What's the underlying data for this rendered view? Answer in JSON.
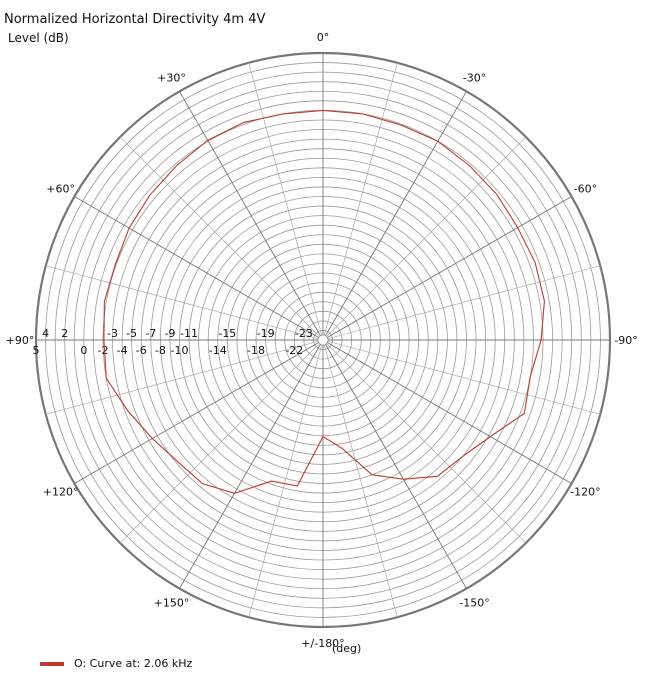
{
  "chart_data": {
    "type": "polar-line",
    "title": "Normalized Horizontal Directivity 4m 4V",
    "rlabel": "Level  (dB)",
    "angle_unit_label": "(deg)",
    "rlim": [
      -25,
      5
    ],
    "rticks_upper": [
      "4",
      "2",
      "-3",
      "-5",
      "-7",
      "-9",
      "-11",
      "-15",
      "-19",
      "-23"
    ],
    "rticks_upper_values": [
      4,
      2,
      -3,
      -5,
      -7,
      -9,
      -11,
      -15,
      -19,
      -23
    ],
    "rticks_lower": [
      "5",
      "0",
      "-2",
      "-4",
      "-6",
      "-8",
      "-10",
      "-14",
      "-18",
      "-22"
    ],
    "rticks_lower_values": [
      5,
      0,
      -2,
      -4,
      -6,
      -8,
      -10,
      -14,
      -18,
      -22
    ],
    "angle_labels": [
      {
        "angle": 0,
        "text": "0°"
      },
      {
        "angle": -30,
        "text": "-30°"
      },
      {
        "angle": -60,
        "text": "-60°"
      },
      {
        "angle": -90,
        "text": "-90°"
      },
      {
        "angle": -120,
        "text": "-120°"
      },
      {
        "angle": -150,
        "text": "-150°"
      },
      {
        "angle": 180,
        "text": "+/-180°"
      },
      {
        "angle": 150,
        "text": "+150°"
      },
      {
        "angle": 120,
        "text": "+120°"
      },
      {
        "angle": 90,
        "text": "+90°"
      },
      {
        "angle": 60,
        "text": "+60°"
      },
      {
        "angle": 30,
        "text": "+30°"
      }
    ],
    "series": [
      {
        "name": "O: Curve at: 2.06 kHz",
        "color": "#c0392b",
        "theta": [
          0,
          -10,
          -20,
          -30,
          -40,
          -50,
          -60,
          -70,
          -80,
          -90,
          -100,
          -110,
          -120,
          -125,
          -130,
          -140,
          -150,
          -160,
          -170,
          -180,
          -190,
          -200,
          -210,
          -220,
          -230,
          -240,
          -250,
          -260,
          -270,
          -280,
          -290,
          -300,
          -310,
          -320,
          -330,
          -340,
          -350,
          -360
        ],
        "r": [
          -1.0,
          -1.0,
          -1.1,
          -1.0,
          -1.2,
          -1.3,
          -1.5,
          -1.4,
          -1.5,
          -2.2,
          -3.0,
          -2.6,
          -4.8,
          -5.5,
          -6.0,
          -6.4,
          -8.2,
          -10.0,
          -13.5,
          -14.9,
          -9.5,
          -9.3,
          -6.5,
          -5.4,
          -5.2,
          -4.4,
          -3.3,
          -2.0,
          -2.1,
          -1.8,
          -1.9,
          -1.6,
          -1.4,
          -1.2,
          -0.9,
          -0.8,
          -1.0,
          -1.0
        ]
      }
    ]
  }
}
